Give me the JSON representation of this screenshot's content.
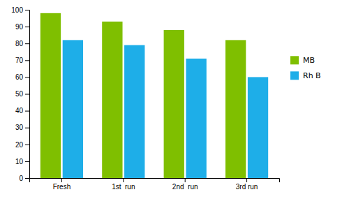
{
  "chart_data": {
    "type": "bar",
    "categories": [
      "Fresh",
      "1st  run",
      "2nd  run",
      "3rd run"
    ],
    "series": [
      {
        "name": "MB",
        "color": "#7FBF00",
        "values": [
          98,
          93,
          88,
          82
        ]
      },
      {
        "name": "Rh B",
        "color": "#1EAEE8",
        "values": [
          82,
          79,
          71,
          60
        ]
      }
    ],
    "ylim": [
      0,
      100
    ],
    "yticks": [
      0,
      10,
      20,
      30,
      40,
      50,
      60,
      70,
      80,
      90,
      100
    ],
    "grid": false,
    "legend": "right"
  }
}
